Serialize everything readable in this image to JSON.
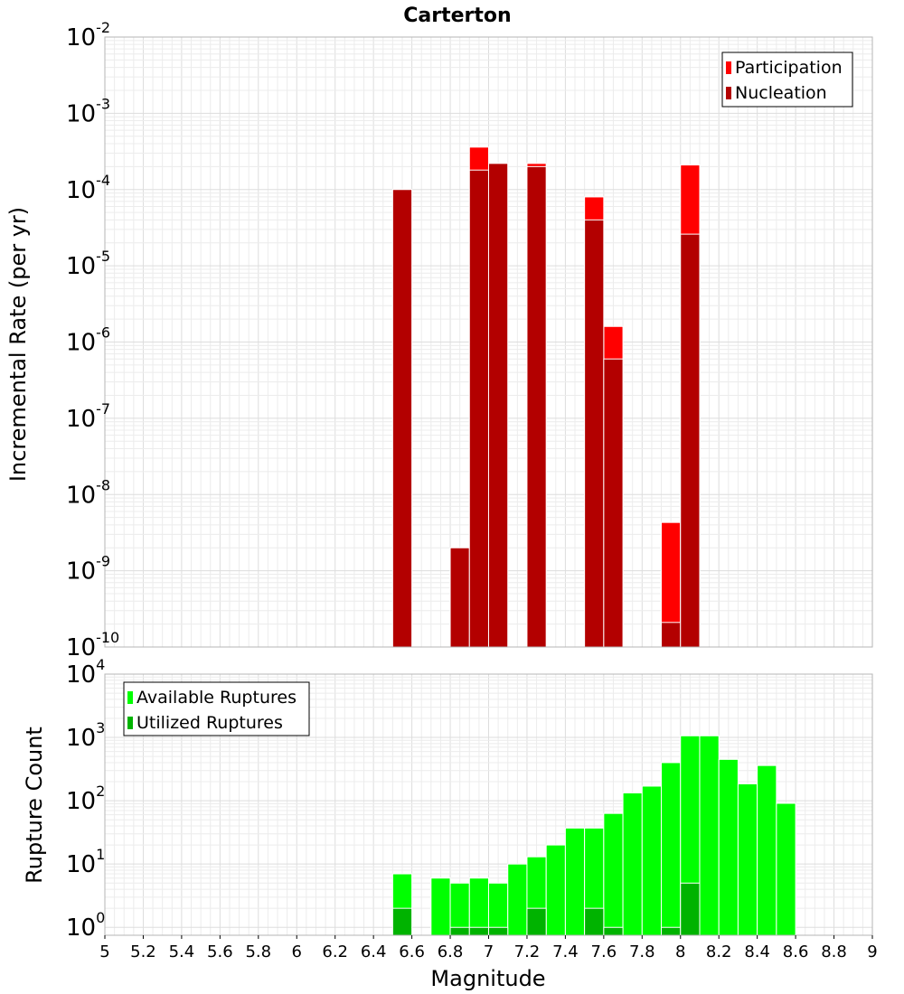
{
  "chart_data": [
    {
      "type": "bar",
      "title": "Carterton",
      "ylabel": "Incremental Rate (per yr)",
      "xlabel": "",
      "ylim": [
        1e-10,
        0.01
      ],
      "yscale": "log",
      "xlim": [
        5,
        9
      ],
      "bin_width": 0.1,
      "legend_position": "top-right",
      "series": [
        {
          "name": "Participation",
          "color": "#ff0000",
          "x": [
            6.55,
            6.85,
            6.95,
            7.05,
            7.25,
            7.55,
            7.65,
            7.95,
            8.05
          ],
          "values": [
            0.0001,
            2e-09,
            0.00036,
            0.00022,
            0.00022,
            8e-05,
            1.6e-06,
            4.3e-09,
            0.00021
          ]
        },
        {
          "name": "Nucleation",
          "color": "#b30000",
          "x": [
            6.55,
            6.85,
            6.95,
            7.05,
            7.25,
            7.55,
            7.65,
            7.95,
            8.05
          ],
          "values": [
            0.0001,
            2e-09,
            0.00018,
            0.00022,
            0.0002,
            4e-05,
            6e-07,
            2.1e-10,
            2.6e-05
          ]
        }
      ]
    },
    {
      "type": "bar",
      "title": "",
      "ylabel": "Rupture Count",
      "xlabel": "Magnitude",
      "ylim": [
        0.75,
        10000
      ],
      "yscale": "log",
      "xlim": [
        5,
        9
      ],
      "bin_width": 0.1,
      "legend_position": "top-left",
      "x_ticks": [
        "5",
        "5.2",
        "5.4",
        "5.6",
        "5.8",
        "6",
        "6.2",
        "6.4",
        "6.6",
        "6.8",
        "7",
        "7.2",
        "7.4",
        "7.6",
        "7.8",
        "8",
        "8.2",
        "8.4",
        "8.6",
        "8.8",
        "9"
      ],
      "series": [
        {
          "name": "Available Ruptures",
          "color": "#00ff00",
          "x": [
            6.55,
            6.75,
            6.85,
            6.95,
            7.05,
            7.15,
            7.25,
            7.35,
            7.45,
            7.55,
            7.65,
            7.75,
            7.85,
            7.95,
            8.05,
            8.15,
            8.25,
            8.35,
            8.45,
            8.55
          ],
          "values": [
            7,
            6,
            5,
            6,
            5,
            10,
            13,
            20,
            37,
            37,
            63,
            133,
            170,
            400,
            1060,
            1060,
            450,
            185,
            360,
            91
          ]
        },
        {
          "name": "Utilized Ruptures",
          "color": "#00b300",
          "x": [
            6.55,
            6.85,
            6.95,
            7.05,
            7.25,
            7.55,
            7.65,
            7.95,
            8.05
          ],
          "values": [
            2,
            1,
            1,
            1,
            2,
            2,
            1,
            1,
            5
          ]
        }
      ]
    }
  ]
}
